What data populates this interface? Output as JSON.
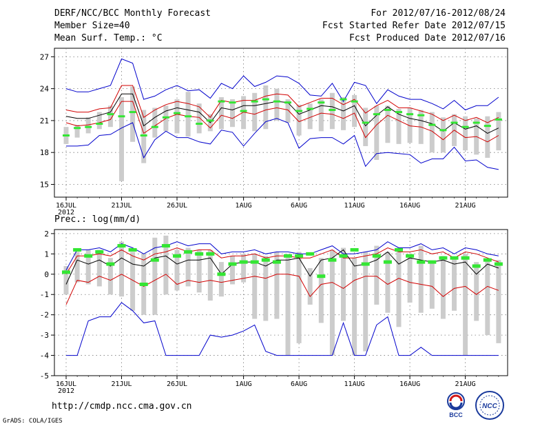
{
  "header": {
    "title": "DERF/NCC/BCC Monthly Forecast",
    "member": "Member Size=40",
    "var1": "Mean Surf. Temp.: °C",
    "period": "For 2012/07/16-2012/08/24",
    "refer": "Fcst Started Refer Date 2012/07/15",
    "produced": "Fcst Produced Date 2012/07/16"
  },
  "footer": {
    "url": "http://cmdp.ncc.cma.gov.cn",
    "grads": "GrADS: COLA/IGES",
    "logo1_text": "BCC",
    "logo2_text": "NCC"
  },
  "colors": {
    "envelope": "#0000cc",
    "spread": "#d20000",
    "mean": "#000000",
    "box": "#cccccc",
    "marker": "#33e633"
  },
  "chart_data": [
    {
      "type": "line",
      "title": "Mean Surf. Temp.: °C",
      "x_tick_labels": [
        "16JUL",
        "21JUL",
        "26JUL",
        "1AUG",
        "6AUG",
        "11AUG",
        "16AUG",
        "21AUG"
      ],
      "x_tick_days": [
        0,
        5,
        10,
        16,
        21,
        26,
        31,
        36
      ],
      "year_label": "2012",
      "y_ticks": [
        15,
        18,
        21,
        24,
        27
      ],
      "ylim": [
        13.8,
        27.8
      ],
      "series": [
        {
          "name": "max",
          "values": [
            24.0,
            23.7,
            23.7,
            24.0,
            24.3,
            26.8,
            26.4,
            23.0,
            23.3,
            23.9,
            24.3,
            23.8,
            23.9,
            23.1,
            24.5,
            24.0,
            25.2,
            24.2,
            24.6,
            25.2,
            25.1,
            24.5,
            23.4,
            23.3,
            24.5,
            22.8,
            24.6,
            24.3,
            22.6,
            23.9,
            23.3,
            23.0,
            23.0,
            22.6,
            22.1,
            22.9,
            22.0,
            22.4,
            22.4,
            23.2
          ]
        },
        {
          "name": "upper",
          "values": [
            22.0,
            21.8,
            21.8,
            22.1,
            22.2,
            24.3,
            24.3,
            21.3,
            22.0,
            22.5,
            22.8,
            22.6,
            22.3,
            21.3,
            22.9,
            22.7,
            22.9,
            22.9,
            23.3,
            23.5,
            23.4,
            22.3,
            22.7,
            23.1,
            23.1,
            22.5,
            23.0,
            21.7,
            22.4,
            22.9,
            22.2,
            22.2,
            21.9,
            21.6,
            21.0,
            21.5,
            21.0,
            21.3,
            20.8,
            21.3
          ]
        },
        {
          "name": "mean",
          "values": [
            21.4,
            21.2,
            21.2,
            21.5,
            21.8,
            23.5,
            23.5,
            20.5,
            21.3,
            21.9,
            22.2,
            22.0,
            21.8,
            20.8,
            22.2,
            22.0,
            22.4,
            22.4,
            22.6,
            22.8,
            22.7,
            21.6,
            22.0,
            22.4,
            22.3,
            21.9,
            22.4,
            20.5,
            21.5,
            22.3,
            21.6,
            21.2,
            21.0,
            20.7,
            20.0,
            20.8,
            20.2,
            20.5,
            19.8,
            20.3
          ]
        },
        {
          "name": "lower",
          "values": [
            20.8,
            20.5,
            20.6,
            20.8,
            21.1,
            22.8,
            22.8,
            19.8,
            20.5,
            21.2,
            21.6,
            21.4,
            21.3,
            20.3,
            21.5,
            21.2,
            21.8,
            21.6,
            22.0,
            22.2,
            22.0,
            20.9,
            21.3,
            21.7,
            21.6,
            21.2,
            21.7,
            19.4,
            20.6,
            21.5,
            21.0,
            20.5,
            20.4,
            20.0,
            19.2,
            20.1,
            19.4,
            19.5,
            19.0,
            19.6
          ]
        },
        {
          "name": "min",
          "values": [
            18.6,
            18.6,
            18.7,
            19.6,
            19.7,
            20.3,
            20.8,
            17.5,
            19.2,
            20.0,
            19.4,
            19.4,
            19.0,
            18.8,
            20.1,
            19.9,
            18.6,
            19.8,
            20.9,
            21.2,
            20.8,
            18.4,
            19.3,
            19.4,
            19.4,
            18.8,
            19.6,
            16.7,
            17.9,
            18.0,
            17.9,
            17.8,
            17.0,
            17.4,
            17.4,
            18.5,
            17.2,
            17.3,
            16.6,
            16.4
          ]
        },
        {
          "name": "observed",
          "values": [
            19.6,
            20.3,
            20.4,
            20.7,
            21.6,
            21.4,
            21.8,
            19.6,
            20.4,
            21.3,
            21.7,
            21.4,
            20.7,
            21.0,
            22.8,
            22.7,
            21.9,
            22.8,
            23.0,
            22.8,
            22.7,
            21.9,
            22.1,
            22.7,
            22.0,
            23.0,
            22.8,
            20.8,
            21.6,
            22.0,
            21.8,
            21.6,
            21.5,
            20.6,
            20.1,
            20.8,
            20.4,
            20.8,
            20.5,
            21.1
          ]
        }
      ],
      "box_bottom": [
        18.8,
        19.4,
        19.8,
        20.2,
        20.4,
        15.3,
        19.0,
        17.0,
        19.4,
        20.0,
        19.8,
        19.5,
        19.8,
        20.0,
        20.2,
        20.4,
        20.2,
        20.0,
        20.2,
        21.0,
        20.8,
        19.6,
        20.2,
        20.0,
        20.2,
        20.1,
        20.4,
        18.6,
        17.3,
        18.9,
        18.8,
        18.9,
        18.8,
        18.0,
        18.0,
        18.6,
        18.2,
        17.8,
        17.5,
        18.2
      ],
      "box_top": [
        20.4,
        20.6,
        21.3,
        21.8,
        22.4,
        23.2,
        24.2,
        22.0,
        22.2,
        22.4,
        23.0,
        23.7,
        22.6,
        21.6,
        23.2,
        23.0,
        23.3,
        23.6,
        24.3,
        24.0,
        23.0,
        22.5,
        22.6,
        23.0,
        23.6,
        23.2,
        23.4,
        22.2,
        22.4,
        22.4,
        22.1,
        22.2,
        22.0,
        21.8,
        21.3,
        21.6,
        21.4,
        21.2,
        21.4,
        21.8
      ]
    },
    {
      "type": "line",
      "title": "Prec.: log(mm/d)",
      "x_tick_labels": [
        "16JUL",
        "21JUL",
        "26JUL",
        "1AUG",
        "6AUG",
        "11AUG",
        "16AUG",
        "21AUG"
      ],
      "x_tick_days": [
        0,
        5,
        10,
        16,
        21,
        26,
        31,
        36
      ],
      "year_label": "2012",
      "y_ticks": [
        -5,
        -4,
        -3,
        -2,
        -1,
        0,
        1,
        2
      ],
      "ylim": [
        -5,
        2.2
      ],
      "series": [
        {
          "name": "max",
          "values": [
            0.2,
            1.2,
            1.2,
            1.3,
            1.1,
            1.5,
            1.3,
            1.0,
            1.3,
            1.4,
            1.6,
            1.4,
            1.5,
            1.5,
            1.0,
            1.1,
            1.1,
            1.2,
            1.0,
            1.1,
            1.1,
            1.0,
            1.0,
            1.2,
            1.4,
            1.0,
            1.0,
            1.1,
            1.2,
            1.6,
            1.3,
            1.3,
            1.5,
            1.2,
            1.3,
            1.0,
            1.3,
            1.2,
            1.0,
            0.9
          ]
        },
        {
          "name": "upper",
          "values": [
            0.0,
            0.9,
            0.9,
            1.0,
            0.9,
            1.2,
            0.9,
            0.7,
            1.0,
            1.1,
            1.3,
            1.1,
            1.2,
            1.2,
            0.8,
            0.9,
            0.9,
            1.0,
            0.8,
            0.9,
            0.9,
            0.8,
            0.8,
            1.0,
            1.2,
            0.8,
            0.8,
            0.9,
            1.0,
            1.3,
            1.1,
            1.1,
            1.2,
            1.0,
            1.1,
            0.8,
            1.1,
            1.0,
            0.8,
            0.6
          ]
        },
        {
          "name": "mean",
          "values": [
            -0.5,
            0.7,
            0.5,
            0.7,
            0.4,
            0.8,
            0.5,
            0.4,
            0.8,
            0.9,
            0.5,
            0.7,
            0.7,
            0.8,
            0.0,
            0.5,
            0.6,
            0.6,
            0.4,
            0.7,
            0.7,
            0.8,
            -0.1,
            0.7,
            0.8,
            1.2,
            0.4,
            0.5,
            0.7,
            1.1,
            0.5,
            0.8,
            0.7,
            0.6,
            0.7,
            0.5,
            0.6,
            0.0,
            0.5,
            0.3
          ]
        },
        {
          "name": "lower",
          "values": [
            -1.5,
            -0.3,
            -0.4,
            -0.1,
            -0.3,
            0.0,
            -0.3,
            -0.6,
            -0.3,
            0.0,
            -0.5,
            -0.3,
            -0.4,
            -0.3,
            -0.4,
            -0.3,
            -0.2,
            -0.1,
            -0.2,
            0.0,
            0.0,
            -0.1,
            -1.1,
            -0.5,
            -0.4,
            -0.7,
            -0.3,
            -0.1,
            -0.1,
            -0.5,
            -0.2,
            -0.4,
            -0.5,
            -0.6,
            -1.1,
            -0.7,
            -0.6,
            -1.0,
            -0.6,
            -0.8
          ]
        },
        {
          "name": "min",
          "values": [
            -4.0,
            -4.0,
            -2.3,
            -2.1,
            -2.1,
            -1.4,
            -1.8,
            -2.4,
            -2.3,
            -4.0,
            -4.0,
            -4.0,
            -4.0,
            -3.0,
            -3.1,
            -3.0,
            -2.8,
            -2.5,
            -3.8,
            -4.0,
            -4.0,
            -4.0,
            -4.0,
            -4.0,
            -4.0,
            -2.4,
            -4.0,
            -4.0,
            -2.5,
            -2.1,
            -4.0,
            -4.0,
            -3.6,
            -4.0,
            -4.0,
            -4.0,
            -4.0,
            -4.0,
            -4.0,
            -4.0
          ]
        },
        {
          "name": "observed",
          "values": [
            0.1,
            1.2,
            0.9,
            1.1,
            0.5,
            1.4,
            1.2,
            -0.5,
            0.7,
            1.4,
            0.9,
            1.1,
            1.0,
            1.0,
            0.0,
            0.5,
            0.6,
            0.6,
            0.7,
            0.6,
            0.9,
            0.9,
            1.0,
            -0.1,
            0.7,
            0.9,
            1.2,
            0.5,
            0.9,
            0.6,
            1.2,
            0.9,
            0.6,
            0.6,
            0.8,
            0.8,
            0.8,
            0.4,
            0.7,
            0.5
          ]
        }
      ],
      "box_bottom": [
        -1.0,
        -0.4,
        -0.5,
        -0.6,
        -1.0,
        -1.1,
        -1.8,
        -2.0,
        -2.0,
        -1.0,
        -0.8,
        -0.6,
        -0.9,
        -1.3,
        -1.1,
        -0.5,
        -0.4,
        -2.2,
        -2.3,
        -2.2,
        -4.0,
        -3.4,
        -1.5,
        -2.4,
        -4.0,
        -2.3,
        -4.0,
        -3.8,
        -1.5,
        -1.9,
        -2.6,
        -1.4,
        -1.9,
        -1.7,
        -2.2,
        -1.8,
        -4.0,
        -2.3,
        -3.0,
        -3.4
      ],
      "box_top": [
        0.4,
        1.1,
        1.2,
        1.2,
        0.8,
        1.6,
        1.1,
        1.0,
        1.8,
        1.9,
        1.2,
        1.3,
        1.2,
        1.2,
        0.6,
        0.9,
        1.0,
        1.0,
        0.9,
        1.1,
        1.0,
        1.1,
        0.3,
        0.8,
        1.2,
        1.3,
        0.8,
        1.1,
        1.4,
        1.1,
        1.3,
        1.0,
        1.4,
        0.6,
        0.9,
        0.8,
        1.0,
        0.6,
        0.7,
        0.7
      ]
    }
  ]
}
